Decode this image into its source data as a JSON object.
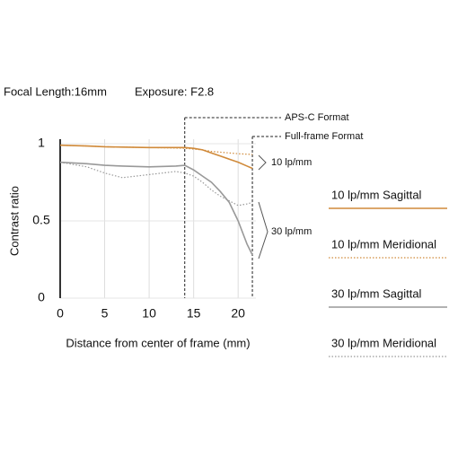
{
  "chart_data": {
    "type": "line",
    "subtitle": "Focal Length:16mm",
    "exposure": "Exposure: F2.8",
    "xlabel": "Distance from center of frame (mm)",
    "ylabel": "Contrast ratio",
    "x": [
      0,
      3,
      5,
      7,
      10,
      13,
      14,
      15,
      16,
      17,
      18,
      19,
      20,
      21,
      21.6
    ],
    "series": [
      {
        "name": "10 lp/mm Sagittal",
        "color": "#d08a3a",
        "style": "solid",
        "values": [
          0.99,
          0.985,
          0.98,
          0.978,
          0.975,
          0.975,
          0.975,
          0.97,
          0.96,
          0.94,
          0.92,
          0.9,
          0.88,
          0.855,
          0.84
        ]
      },
      {
        "name": "10 lp/mm Meridional",
        "color": "#d08a3a",
        "style": "dotted",
        "values": [
          0.99,
          0.985,
          0.98,
          0.978,
          0.975,
          0.972,
          0.97,
          0.965,
          0.96,
          0.95,
          0.945,
          0.94,
          0.935,
          0.932,
          0.93
        ]
      },
      {
        "name": "30 lp/mm Sagittal",
        "color": "#999999",
        "style": "solid",
        "values": [
          0.88,
          0.87,
          0.86,
          0.855,
          0.85,
          0.855,
          0.86,
          0.83,
          0.79,
          0.75,
          0.69,
          0.62,
          0.5,
          0.35,
          0.28
        ]
      },
      {
        "name": "30 lp/mm Meridional",
        "color": "#999999",
        "style": "dotted",
        "values": [
          0.88,
          0.85,
          0.81,
          0.78,
          0.8,
          0.82,
          0.81,
          0.79,
          0.75,
          0.7,
          0.66,
          0.63,
          0.6,
          0.61,
          0.62
        ]
      }
    ],
    "markers": [
      {
        "label": "APS-C Format",
        "x": 14
      },
      {
        "label": "Full-frame Format",
        "x": 21.6
      }
    ],
    "groups": [
      "10 lp/mm",
      "30 lp/mm"
    ],
    "xlim": [
      0,
      22
    ],
    "ylim": [
      0,
      1
    ],
    "xticks": [
      0,
      5,
      10,
      15,
      20
    ],
    "yticks": [
      0,
      {
        "value": 0.5,
        "label": "0.5"
      },
      1
    ],
    "grid": true
  }
}
